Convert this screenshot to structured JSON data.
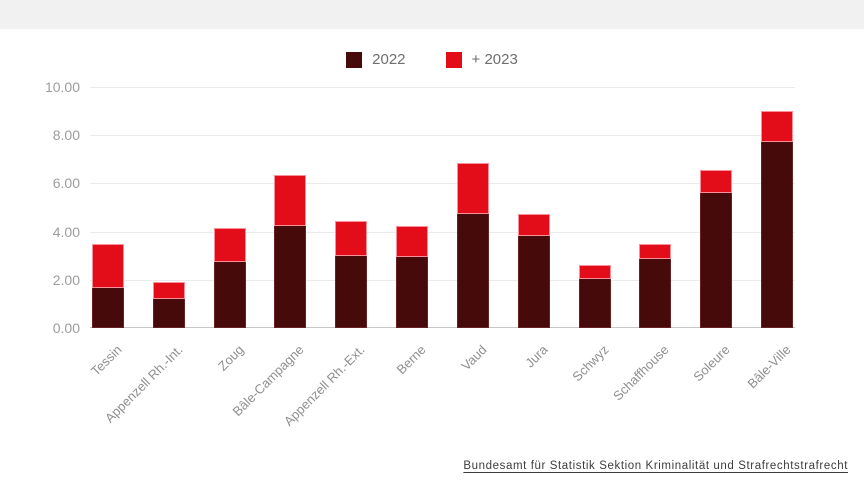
{
  "page": {
    "background": "#ffffff",
    "top_band_color": "#f1f1f1"
  },
  "legend": {
    "items": [
      {
        "label": "2022",
        "color": "#470a0a"
      },
      {
        "label": "+ 2023",
        "color": "#e20d19"
      }
    ]
  },
  "chart_data": {
    "type": "bar",
    "stacked": true,
    "title": "",
    "xlabel": "",
    "ylabel": "",
    "categories": [
      "Tessin",
      "Appenzell Rh.-Int.",
      "Zoug",
      "Bâle-Campagne",
      "Appenzell Rh.-Ext.",
      "Berne",
      "Vaud",
      "Jura",
      "Schwyz",
      "Schaffhouse",
      "Soleure",
      "Bâle-Ville"
    ],
    "series": [
      {
        "name": "2022",
        "color": "#470a0a",
        "values": [
          1.65,
          1.2,
          2.75,
          4.25,
          3.0,
          2.95,
          4.75,
          3.8,
          2.05,
          2.85,
          5.6,
          7.7
        ]
      },
      {
        "name": "+ 2023",
        "color": "#e20d19",
        "values": [
          1.85,
          0.7,
          1.4,
          2.1,
          1.45,
          1.3,
          2.1,
          0.95,
          0.55,
          0.65,
          0.95,
          1.3
        ]
      }
    ],
    "stack_totals": [
      3.5,
      1.9,
      4.15,
      6.35,
      4.45,
      4.25,
      6.85,
      4.75,
      2.6,
      3.5,
      6.55,
      9.0
    ],
    "ylim": [
      0,
      10
    ],
    "yticks": [
      {
        "value": 0,
        "label": "0.00"
      },
      {
        "value": 2,
        "label": "2.00"
      },
      {
        "value": 4,
        "label": "4.00"
      },
      {
        "value": 6,
        "label": "6.00"
      },
      {
        "value": 8,
        "label": "8.00"
      },
      {
        "value": 10,
        "label": "10.00"
      }
    ],
    "grid": true,
    "legend_position": "top",
    "x_label_rotation": -45
  },
  "source": {
    "label": "Bundesamt für Statistik Sektion Kriminalität und Strafrechtstrafrecht"
  }
}
